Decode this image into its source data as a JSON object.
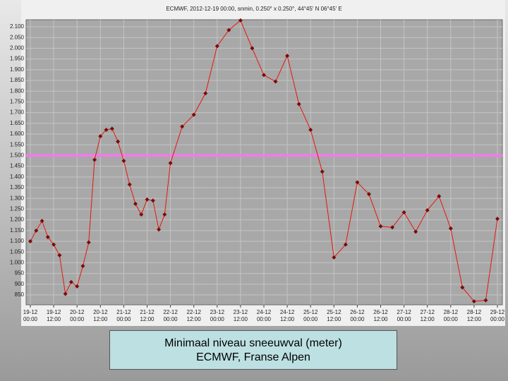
{
  "chart_data": {
    "type": "line",
    "title": "ECMWF, 2012-12-19 00:00, snmin, 0.250° x 0.250°, 44°45' N 06°45' E",
    "x": [
      "19-12 00:00",
      "19-12 03:00",
      "19-12 06:00",
      "19-12 09:00",
      "19-12 12:00",
      "19-12 15:00",
      "19-12 18:00",
      "19-12 21:00",
      "20-12 00:00",
      "20-12 03:00",
      "20-12 06:00",
      "20-12 09:00",
      "20-12 12:00",
      "20-12 15:00",
      "20-12 18:00",
      "20-12 21:00",
      "21-12 00:00",
      "21-12 03:00",
      "21-12 06:00",
      "21-12 09:00",
      "21-12 12:00",
      "21-12 15:00",
      "21-12 18:00",
      "21-12 21:00",
      "22-12 00:00",
      "22-12 06:00",
      "22-12 12:00",
      "22-12 18:00",
      "23-12 00:00",
      "23-12 06:00",
      "23-12 12:00",
      "23-12 18:00",
      "24-12 00:00",
      "24-12 06:00",
      "24-12 12:00",
      "24-12 18:00",
      "25-12 00:00",
      "25-12 06:00",
      "25-12 12:00",
      "25-12 18:00",
      "26-12 00:00",
      "26-12 06:00",
      "26-12 12:00",
      "26-12 18:00",
      "27-12 00:00",
      "27-12 06:00",
      "27-12 12:00",
      "27-12 18:00",
      "28-12 00:00",
      "28-12 06:00",
      "28-12 12:00",
      "28-12 18:00",
      "29-12 00:00"
    ],
    "values": [
      1100,
      1150,
      1195,
      1120,
      1085,
      1035,
      855,
      910,
      890,
      985,
      1095,
      1480,
      1590,
      1620,
      1625,
      1565,
      1475,
      1365,
      1275,
      1225,
      1295,
      1290,
      1155,
      1225,
      1465,
      1635,
      1690,
      1790,
      2010,
      2085,
      2130,
      2000,
      1875,
      1845,
      1965,
      1740,
      1620,
      1425,
      1025,
      1085,
      1375,
      1320,
      1170,
      1165,
      1235,
      1145,
      1245,
      1310,
      1160,
      885,
      820,
      825,
      1205
    ],
    "color": "#e8160c",
    "marker_color": "#7a0a0a",
    "ylim": [
      804,
      2133
    ],
    "yticks": [
      {
        "value": 850,
        "label": "850"
      },
      {
        "value": 900,
        "label": "900"
      },
      {
        "value": 950,
        "label": "950"
      },
      {
        "value": 1000,
        "label": "1.000"
      },
      {
        "value": 1050,
        "label": "1.050"
      },
      {
        "value": 1100,
        "label": "1.100"
      },
      {
        "value": 1150,
        "label": "1.150"
      },
      {
        "value": 1200,
        "label": "1.200"
      },
      {
        "value": 1250,
        "label": "1.250"
      },
      {
        "value": 1300,
        "label": "1.300"
      },
      {
        "value": 1350,
        "label": "1.350"
      },
      {
        "value": 1400,
        "label": "1.400"
      },
      {
        "value": 1450,
        "label": "1.450"
      },
      {
        "value": 1500,
        "label": "1.500"
      },
      {
        "value": 1550,
        "label": "1.550"
      },
      {
        "value": 1600,
        "label": "1.600"
      },
      {
        "value": 1650,
        "label": "1.650"
      },
      {
        "value": 1700,
        "label": "1.700"
      },
      {
        "value": 1750,
        "label": "1.750"
      },
      {
        "value": 1800,
        "label": "1.800"
      },
      {
        "value": 1850,
        "label": "1.850"
      },
      {
        "value": 1900,
        "label": "1.900"
      },
      {
        "value": 1950,
        "label": "1.950"
      },
      {
        "value": 2000,
        "label": "2.000"
      },
      {
        "value": 2050,
        "label": "2.050"
      },
      {
        "value": 2100,
        "label": "2.100"
      }
    ],
    "xticks": [
      "19-12\n00:00",
      "19-12\n12:00",
      "20-12\n00:00",
      "20-12\n12:00",
      "21-12\n00:00",
      "21-12\n12:00",
      "22-12\n00:00",
      "22-12\n12:00",
      "23-12\n00:00",
      "23-12\n12:00",
      "24-12\n00:00",
      "24-12\n12:00",
      "25-12\n00:00",
      "25-12\n12:00",
      "26-12\n00:00",
      "26-12\n12:00",
      "27-12\n00:00",
      "27-12\n12:00",
      "28-12\n00:00",
      "28-12\n12:00",
      "29-12\n00:00"
    ],
    "grid": true,
    "threshold": {
      "value": 1500,
      "color": "#ee7de8"
    }
  },
  "caption": {
    "line1": "Minimaal niveau sneeuwval (meter)",
    "line2": "ECMWF, Franse Alpen"
  }
}
